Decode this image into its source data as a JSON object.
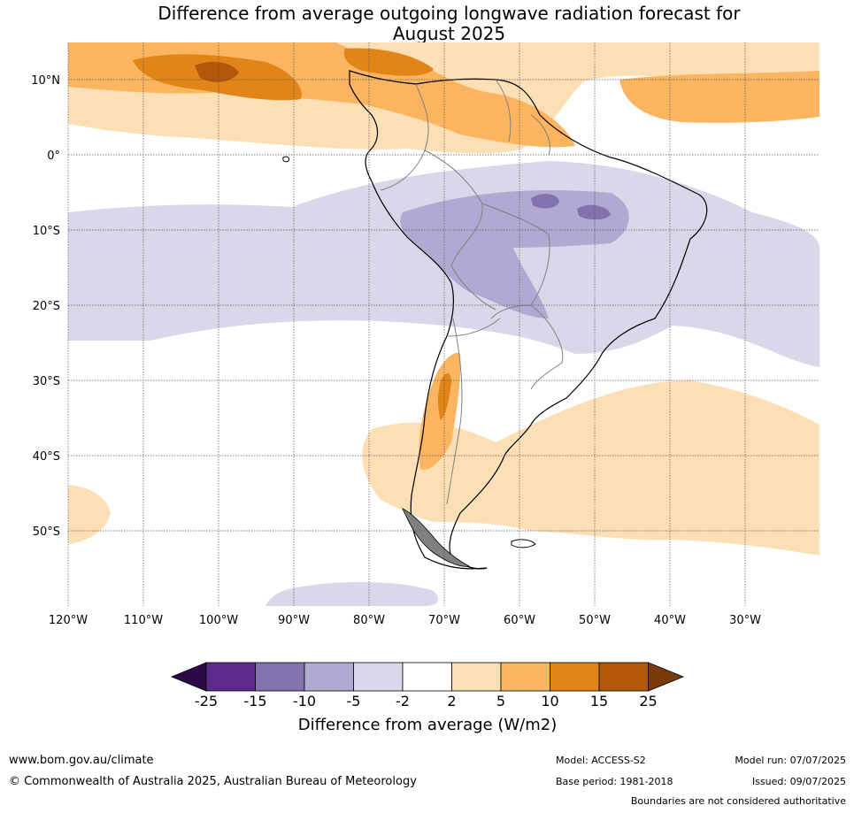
{
  "title": {
    "line1": "Difference from average outgoing longwave radiation forecast for",
    "line2": "August 2025"
  },
  "map": {
    "lon_labels": [
      "120°W",
      "110°W",
      "100°W",
      "90°W",
      "80°W",
      "70°W",
      "60°W",
      "50°W",
      "40°W",
      "30°W"
    ],
    "lat_labels": [
      "10°N",
      "0°",
      "10°S",
      "20°S",
      "30°S",
      "40°S",
      "50°S"
    ],
    "extent": {
      "lon_min": -120,
      "lon_max": -20,
      "lat_min": -60,
      "lat_max": 15
    }
  },
  "colorbar": {
    "ticks": [
      "-25",
      "-15",
      "-10",
      "-5",
      "-2",
      "2",
      "5",
      "10",
      "15",
      "25"
    ],
    "colors": [
      "#5c2a8a",
      "#8272ad",
      "#b1a9d2",
      "#d8d8ea",
      "#ffffff",
      "#fddfb5",
      "#fbb45f",
      "#e18518",
      "#b35808"
    ],
    "under_color": "#2c0a4a",
    "over_color": "#7a3b0c",
    "label": "Difference from average (W/m2)"
  },
  "footer": {
    "website": "www.bom.gov.au/climate",
    "copyright": "© Commonwealth of Australia 2025, Australian Bureau of Meteorology",
    "model": "Model: ACCESS-S2",
    "base_period": "Base period: 1981-2018",
    "model_run": "Model run: 07/07/2025",
    "issued": "Issued: 09/07/2025",
    "disclaimer": "Boundaries are not considered authoritative"
  }
}
